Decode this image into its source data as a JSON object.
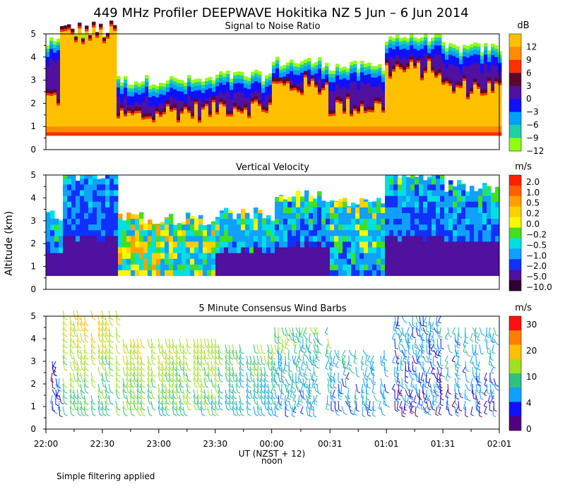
{
  "title": "449 MHz Profiler DEEPWAVE Hokitika NZ  5 Jun –  6 Jun 2014",
  "ylabel": "Altitude (km)",
  "xaxis": {
    "ticks": [
      "22:00",
      "22:30",
      "23:00",
      "23:30",
      "00:00",
      "00:31",
      "01:01",
      "01:31",
      "02:01"
    ],
    "xlim_hours": [
      22.0,
      26.017
    ],
    "tick_hours": [
      22.0,
      22.5,
      23.0,
      23.5,
      24.0,
      24.517,
      25.017,
      25.517,
      26.017
    ],
    "label": "UT  (NZST + 12)",
    "noon_label": "noon"
  },
  "footnote": "Simple filtering applied",
  "chart_data": [
    {
      "type": "heatmap",
      "title": "Signal to Noise Ratio",
      "units": "dB",
      "ylim": [
        0,
        5
      ],
      "yticks": [
        "0",
        "1",
        "2",
        "3",
        "4",
        "5"
      ],
      "colorbar": {
        "labels": [
          "12",
          "9",
          "6",
          "3",
          "0",
          "−3",
          "−6",
          "−9",
          "−12"
        ],
        "colors": [
          "#ffc000",
          "#ff8c00",
          "#ff3000",
          "#5a0a2a",
          "#5010a0",
          "#1010ff",
          "#00a0ff",
          "#20d0a0",
          "#90ff10"
        ]
      },
      "data_extent_km": [
        0.6,
        5.0
      ],
      "periods": [
        {
          "t": [
            22.0,
            22.12
          ],
          "core_top": 2.2,
          "echo_top": 4.6
        },
        {
          "t": [
            22.12,
            22.62
          ],
          "core_top": 4.9,
          "echo_top": 5.0
        },
        {
          "t": [
            22.62,
            23.0
          ],
          "core_top": 1.4,
          "echo_top": 3.0
        },
        {
          "t": [
            23.0,
            23.5
          ],
          "core_top": 1.6,
          "echo_top": 3.0
        },
        {
          "t": [
            23.5,
            24.0
          ],
          "core_top": 1.8,
          "echo_top": 3.2
        },
        {
          "t": [
            24.0,
            24.5
          ],
          "core_top": 2.7,
          "echo_top": 3.8
        },
        {
          "t": [
            24.5,
            25.0
          ],
          "core_top": 1.8,
          "echo_top": 3.6
        },
        {
          "t": [
            25.0,
            25.5
          ],
          "core_top": 3.4,
          "echo_top": 4.9
        },
        {
          "t": [
            25.5,
            26.017
          ],
          "core_top": 2.6,
          "echo_top": 4.4
        }
      ]
    },
    {
      "type": "heatmap",
      "title": "Vertical Velocity",
      "units": "m/s",
      "ylim": [
        0,
        5
      ],
      "yticks": [
        "0",
        "1",
        "2",
        "3",
        "4",
        "5"
      ],
      "colorbar": {
        "labels": [
          "2.0",
          "1.0",
          "0.5",
          "0.2",
          "0.0",
          "−0.2",
          "−0.5",
          "−1.0",
          "−2.0",
          "−5.0",
          "−10.0"
        ],
        "colors": [
          "#ff2000",
          "#ff6000",
          "#ffa000",
          "#ffd000",
          "#f8f800",
          "#40e020",
          "#00e0e0",
          "#10a0ff",
          "#1030ff",
          "#5010a0",
          "#300030"
        ]
      },
      "data_extent_km": [
        0.6,
        5.0
      ],
      "periods": [
        {
          "t": [
            22.0,
            22.12
          ],
          "top": 3.2,
          "mean_ms": -1.5
        },
        {
          "t": [
            22.12,
            22.62
          ],
          "top": 5.0,
          "mean_ms": -2.5
        },
        {
          "t": [
            22.62,
            23.0
          ],
          "top": 3.1,
          "mean_ms": -0.3
        },
        {
          "t": [
            23.0,
            23.5
          ],
          "top": 3.1,
          "mean_ms": -0.5
        },
        {
          "t": [
            23.5,
            24.0
          ],
          "top": 3.3,
          "mean_ms": -1.2
        },
        {
          "t": [
            24.0,
            24.5
          ],
          "top": 4.1,
          "mean_ms": -1.6
        },
        {
          "t": [
            24.5,
            25.0
          ],
          "top": 3.8,
          "mean_ms": -1.0
        },
        {
          "t": [
            25.0,
            25.5
          ],
          "top": 5.0,
          "mean_ms": -2.0
        },
        {
          "t": [
            25.5,
            26.017
          ],
          "top": 4.5,
          "mean_ms": -1.8
        }
      ]
    },
    {
      "type": "scatter",
      "subtype": "wind-barbs",
      "title": "5 Minute Consensus Wind Barbs",
      "units": "m/s",
      "ylim": [
        0,
        5
      ],
      "yticks": [
        "0",
        "1",
        "2",
        "3",
        "4",
        "5"
      ],
      "colorbar": {
        "labels": [
          "30",
          "20",
          "10",
          "4",
          "0"
        ],
        "colors": [
          "#ff1010",
          "#ff8000",
          "#ffc000",
          "#a0e020",
          "#30c080",
          "#10a0ff",
          "#1010ff",
          "#500080"
        ]
      },
      "periods": [
        {
          "t": [
            22.0,
            22.12
          ],
          "alt_km": [
            1.0,
            3.2
          ],
          "speed_ms": 3
        },
        {
          "t": [
            22.12,
            22.62
          ],
          "alt_km": [
            1.0,
            5.3
          ],
          "speed_ms": 12
        },
        {
          "t": [
            22.62,
            23.0
          ],
          "alt_km": [
            1.0,
            4.2
          ],
          "speed_ms": 13
        },
        {
          "t": [
            23.0,
            23.5
          ],
          "alt_km": [
            1.0,
            4.2
          ],
          "speed_ms": 12
        },
        {
          "t": [
            23.5,
            24.0
          ],
          "alt_km": [
            1.0,
            3.9
          ],
          "speed_ms": 9
        },
        {
          "t": [
            24.0,
            24.5
          ],
          "alt_km": [
            1.0,
            4.5
          ],
          "speed_ms": 7
        },
        {
          "t": [
            24.5,
            25.0
          ],
          "alt_km": [
            1.0,
            3.6
          ],
          "speed_ms": 6
        },
        {
          "t": [
            25.0,
            25.5
          ],
          "alt_km": [
            1.0,
            5.0
          ],
          "speed_ms": 4
        },
        {
          "t": [
            25.5,
            26.017
          ],
          "alt_km": [
            1.0,
            4.6
          ],
          "speed_ms": 5
        }
      ]
    }
  ]
}
